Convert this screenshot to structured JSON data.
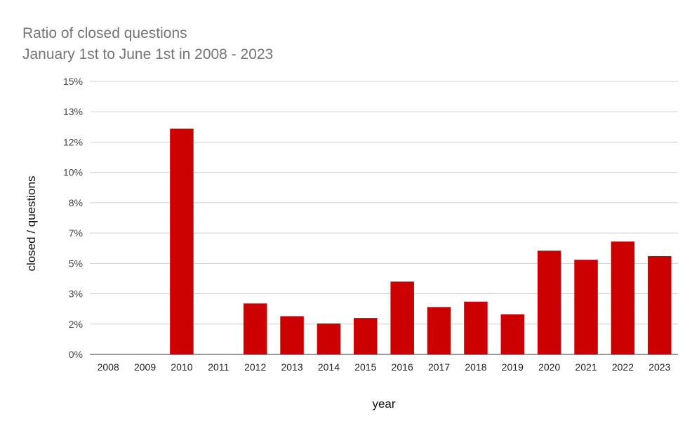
{
  "chart_data": {
    "type": "bar",
    "title": "Ratio of closed questions",
    "subtitle": "January 1st to June 1st in 2008 - 2023",
    "xlabel": "year",
    "ylabel": "closed / questions",
    "categories": [
      "2008",
      "2009",
      "2010",
      "2011",
      "2012",
      "2013",
      "2014",
      "2015",
      "2016",
      "2017",
      "2018",
      "2019",
      "2020",
      "2021",
      "2022",
      "2023"
    ],
    "values": [
      0,
      0,
      12.4,
      0,
      2.8,
      2.1,
      1.7,
      2.0,
      4.0,
      2.6,
      2.9,
      2.2,
      5.7,
      5.2,
      6.2,
      5.4
    ],
    "y_ticks": [
      "0%",
      "2%",
      "3%",
      "5%",
      "7%",
      "8%",
      "10%",
      "12%",
      "13%",
      "15%"
    ],
    "ylim": [
      0,
      15
    ],
    "grid": true,
    "legend": "none",
    "bar_color": "#cc0000"
  }
}
